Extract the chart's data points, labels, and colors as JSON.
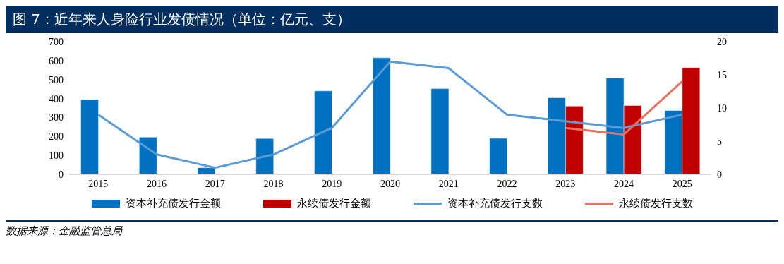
{
  "chart_data": {
    "type": "bar",
    "title": "图 7：近年来人身险行业发债情况（单位：亿元、支）",
    "categories": [
      "2015",
      "2016",
      "2017",
      "2018",
      "2019",
      "2020",
      "2021",
      "2022",
      "2023",
      "2024",
      "2025"
    ],
    "series": [
      {
        "name": "资本补充债发行金额",
        "color": "#0070c0",
        "values": [
          395,
          196,
          35,
          189,
          440,
          615,
          452,
          190,
          404,
          508,
          337
        ]
      },
      {
        "name": "永续债发行金额",
        "color": "#c00000",
        "values": [
          null,
          null,
          null,
          null,
          null,
          null,
          null,
          null,
          360,
          363,
          563
        ]
      },
      {
        "name": "资本补充债发行支数",
        "type": "line",
        "axis": "y2",
        "color": "#5b9bd5",
        "values": [
          9,
          3,
          1,
          3,
          7,
          17,
          16,
          9,
          8,
          7,
          9
        ]
      },
      {
        "name": "永续债发行支数",
        "type": "line",
        "axis": "y2",
        "color": "#e8705f",
        "values": [
          null,
          null,
          null,
          null,
          null,
          null,
          null,
          null,
          7,
          6,
          14
        ]
      }
    ],
    "ylim": [
      0,
      700
    ],
    "yticks": [
      0,
      100,
      200,
      300,
      400,
      500,
      600,
      700
    ],
    "y2lim": [
      0,
      20
    ],
    "y2ticks": [
      0,
      5,
      10,
      15,
      20
    ],
    "legend": "bottom",
    "marker": "none",
    "annotations": [
      "数据来源：金融监管总局"
    ]
  }
}
